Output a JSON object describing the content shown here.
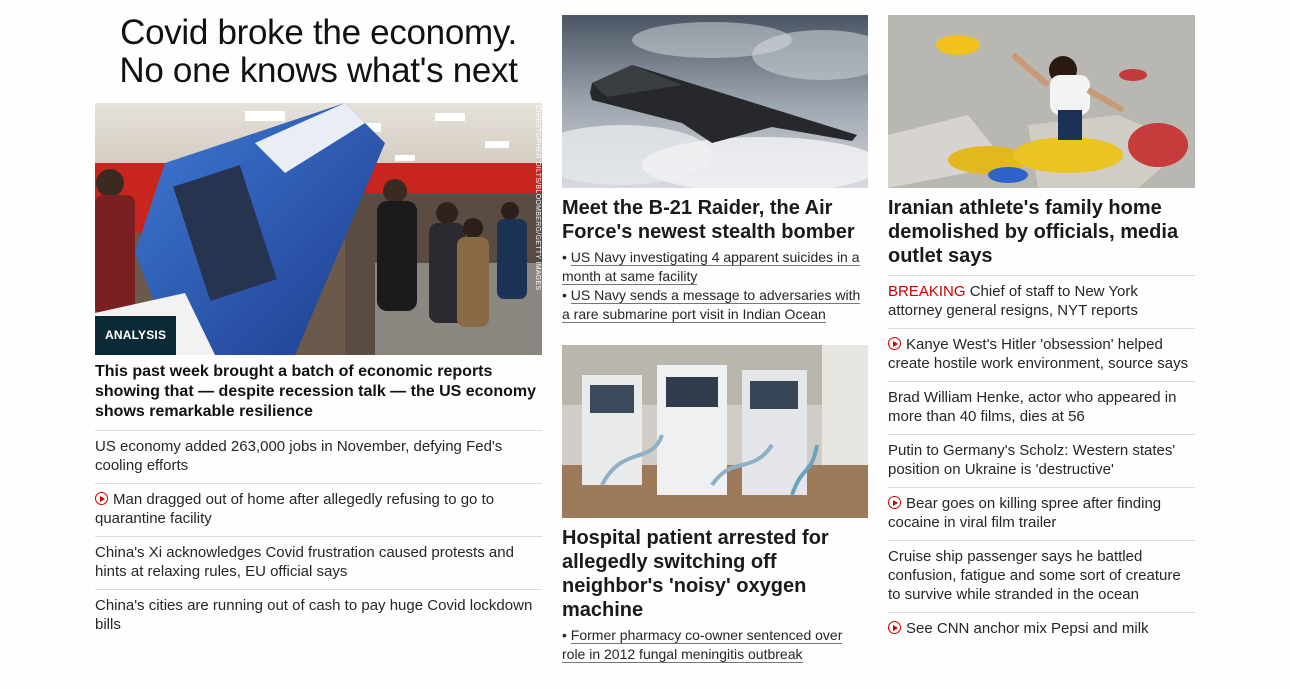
{
  "lead": {
    "title_line1": "Covid broke the economy.",
    "title_line2": "No one knows what's next",
    "image_credit": "CHRISTOPHER DILTS/BLOOMBERG/GETTY IMAGES",
    "badge": "ANALYSIS",
    "subtitle": "This past week brought a batch of economic reports showing that — despite recession talk — the US economy shows remarkable resilience",
    "links": [
      {
        "text": "US economy added 263,000 jobs in November, defying Fed's cooling efforts",
        "video": false
      },
      {
        "text": "Man dragged out of home after allegedly refusing to go to quarantine facility",
        "video": true
      },
      {
        "text": "China's Xi acknowledges Covid frustration caused protests and hints at relaxing rules, EU official says",
        "video": false
      },
      {
        "text": "China's cities are running out of cash to pay huge Covid lockdown bills",
        "video": false
      }
    ]
  },
  "middle": {
    "story1": {
      "title": "Meet the B-21 Raider, the Air Force's newest stealth bomber",
      "bullets": [
        "US Navy investigating 4 apparent suicides in a month at same facility",
        "US Navy sends a message to adversaries with a rare submarine port visit in Indian Ocean"
      ]
    },
    "story2": {
      "title": "Hospital patient arrested for allegedly switching off neighbor's 'noisy' oxygen machine",
      "bullets": [
        "Former pharmacy co-owner sentenced over role in 2012 fungal meningitis outbreak"
      ]
    }
  },
  "right": {
    "title": "Iranian athlete's family home demolished by officials, media outlet says",
    "breaking_label": "BREAKING",
    "links": [
      {
        "text": "Chief of staff to New York attorney general resigns, NYT reports",
        "breaking": true,
        "video": false
      },
      {
        "text": "Kanye West's Hitler 'obsession' helped create hostile work environment, source says",
        "breaking": false,
        "video": true
      },
      {
        "text": "Brad William Henke, actor who appeared in more than 40 films, dies at 56",
        "breaking": false,
        "video": false
      },
      {
        "text": "Putin to Germany's Scholz: Western states' position on Ukraine is 'destructive'",
        "breaking": false,
        "video": false
      },
      {
        "text": "Bear goes on killing spree after finding cocaine in viral film trailer",
        "breaking": false,
        "video": true
      },
      {
        "text": "Cruise ship passenger says he battled confusion, fatigue and some sort of creature to survive while stranded in the ocean",
        "breaking": false,
        "video": false
      },
      {
        "text": "See CNN anchor mix Pepsi and milk",
        "breaking": false,
        "video": true
      }
    ]
  },
  "colors": {
    "accent_red": "#cc0000",
    "badge_bg": "#0c2a36",
    "divider": "#dcdcdc"
  },
  "icons": {
    "video": "play-circle-icon"
  }
}
